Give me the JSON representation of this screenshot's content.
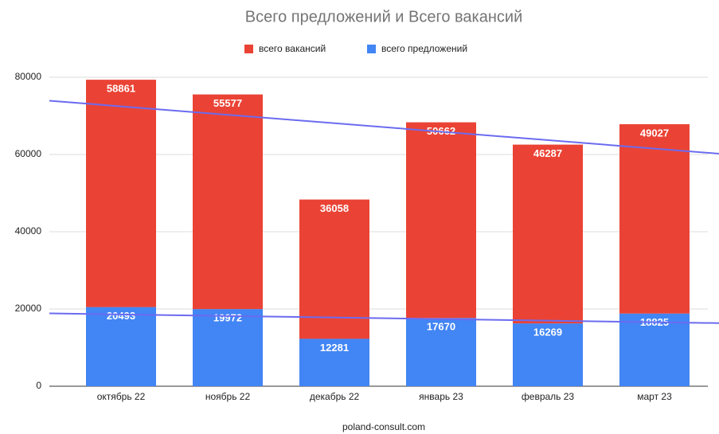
{
  "chart_data": {
    "type": "stacked_bar",
    "title": "Всего предложений и Всего вакансий",
    "categories": [
      "октябрь 22",
      "ноябрь 22",
      "декабрь 22",
      "январь 23",
      "февраль 23",
      "март 23"
    ],
    "series": [
      {
        "name": "всего вакансий",
        "color": "#ea4335",
        "values": [
          58861,
          55577,
          36058,
          50662,
          46287,
          49027
        ]
      },
      {
        "name": "всего предложений",
        "color": "#4285f4",
        "values": [
          20493,
          19972,
          12281,
          17670,
          16269,
          18825
        ]
      }
    ],
    "ylim": [
      0,
      80000
    ],
    "yticks": [
      0,
      20000,
      40000,
      60000,
      80000
    ],
    "grid": true,
    "trendline": true,
    "trendline_color": "#6b6bf0",
    "legend": "top",
    "footer": "poland-consult.com"
  }
}
